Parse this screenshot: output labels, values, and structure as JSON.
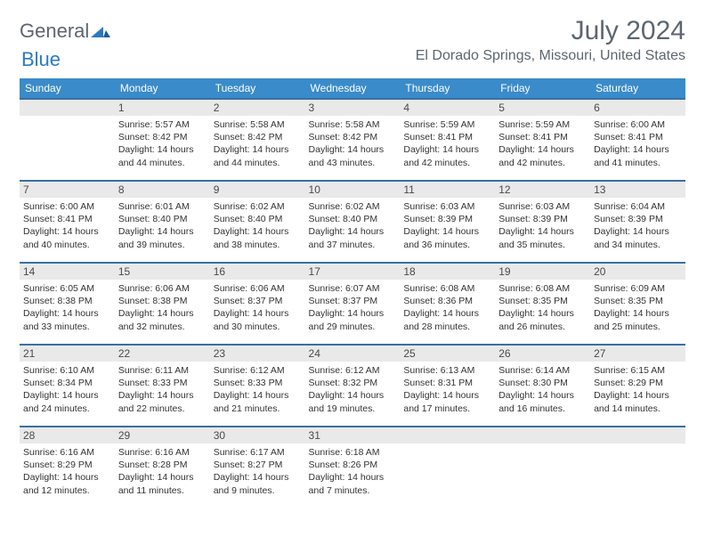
{
  "logo": {
    "text_general": "General",
    "text_blue": "Blue"
  },
  "title": "July 2024",
  "location": "El Dorado Springs, Missouri, United States",
  "colors": {
    "header_bg": "#3a8bc9",
    "row_border": "#3a6fa5",
    "daybar_bg": "#e9e9e9",
    "text_main": "#333333",
    "text_title": "#5c6670",
    "logo_blue": "#2b7bbf"
  },
  "day_headers": [
    "Sunday",
    "Monday",
    "Tuesday",
    "Wednesday",
    "Thursday",
    "Friday",
    "Saturday"
  ],
  "weeks": [
    [
      {
        "num": "",
        "sunrise": "",
        "sunset": "",
        "daylight": ""
      },
      {
        "num": "1",
        "sunrise": "Sunrise: 5:57 AM",
        "sunset": "Sunset: 8:42 PM",
        "daylight": "Daylight: 14 hours and 44 minutes."
      },
      {
        "num": "2",
        "sunrise": "Sunrise: 5:58 AM",
        "sunset": "Sunset: 8:42 PM",
        "daylight": "Daylight: 14 hours and 44 minutes."
      },
      {
        "num": "3",
        "sunrise": "Sunrise: 5:58 AM",
        "sunset": "Sunset: 8:42 PM",
        "daylight": "Daylight: 14 hours and 43 minutes."
      },
      {
        "num": "4",
        "sunrise": "Sunrise: 5:59 AM",
        "sunset": "Sunset: 8:41 PM",
        "daylight": "Daylight: 14 hours and 42 minutes."
      },
      {
        "num": "5",
        "sunrise": "Sunrise: 5:59 AM",
        "sunset": "Sunset: 8:41 PM",
        "daylight": "Daylight: 14 hours and 42 minutes."
      },
      {
        "num": "6",
        "sunrise": "Sunrise: 6:00 AM",
        "sunset": "Sunset: 8:41 PM",
        "daylight": "Daylight: 14 hours and 41 minutes."
      }
    ],
    [
      {
        "num": "7",
        "sunrise": "Sunrise: 6:00 AM",
        "sunset": "Sunset: 8:41 PM",
        "daylight": "Daylight: 14 hours and 40 minutes."
      },
      {
        "num": "8",
        "sunrise": "Sunrise: 6:01 AM",
        "sunset": "Sunset: 8:40 PM",
        "daylight": "Daylight: 14 hours and 39 minutes."
      },
      {
        "num": "9",
        "sunrise": "Sunrise: 6:02 AM",
        "sunset": "Sunset: 8:40 PM",
        "daylight": "Daylight: 14 hours and 38 minutes."
      },
      {
        "num": "10",
        "sunrise": "Sunrise: 6:02 AM",
        "sunset": "Sunset: 8:40 PM",
        "daylight": "Daylight: 14 hours and 37 minutes."
      },
      {
        "num": "11",
        "sunrise": "Sunrise: 6:03 AM",
        "sunset": "Sunset: 8:39 PM",
        "daylight": "Daylight: 14 hours and 36 minutes."
      },
      {
        "num": "12",
        "sunrise": "Sunrise: 6:03 AM",
        "sunset": "Sunset: 8:39 PM",
        "daylight": "Daylight: 14 hours and 35 minutes."
      },
      {
        "num": "13",
        "sunrise": "Sunrise: 6:04 AM",
        "sunset": "Sunset: 8:39 PM",
        "daylight": "Daylight: 14 hours and 34 minutes."
      }
    ],
    [
      {
        "num": "14",
        "sunrise": "Sunrise: 6:05 AM",
        "sunset": "Sunset: 8:38 PM",
        "daylight": "Daylight: 14 hours and 33 minutes."
      },
      {
        "num": "15",
        "sunrise": "Sunrise: 6:06 AM",
        "sunset": "Sunset: 8:38 PM",
        "daylight": "Daylight: 14 hours and 32 minutes."
      },
      {
        "num": "16",
        "sunrise": "Sunrise: 6:06 AM",
        "sunset": "Sunset: 8:37 PM",
        "daylight": "Daylight: 14 hours and 30 minutes."
      },
      {
        "num": "17",
        "sunrise": "Sunrise: 6:07 AM",
        "sunset": "Sunset: 8:37 PM",
        "daylight": "Daylight: 14 hours and 29 minutes."
      },
      {
        "num": "18",
        "sunrise": "Sunrise: 6:08 AM",
        "sunset": "Sunset: 8:36 PM",
        "daylight": "Daylight: 14 hours and 28 minutes."
      },
      {
        "num": "19",
        "sunrise": "Sunrise: 6:08 AM",
        "sunset": "Sunset: 8:35 PM",
        "daylight": "Daylight: 14 hours and 26 minutes."
      },
      {
        "num": "20",
        "sunrise": "Sunrise: 6:09 AM",
        "sunset": "Sunset: 8:35 PM",
        "daylight": "Daylight: 14 hours and 25 minutes."
      }
    ],
    [
      {
        "num": "21",
        "sunrise": "Sunrise: 6:10 AM",
        "sunset": "Sunset: 8:34 PM",
        "daylight": "Daylight: 14 hours and 24 minutes."
      },
      {
        "num": "22",
        "sunrise": "Sunrise: 6:11 AM",
        "sunset": "Sunset: 8:33 PM",
        "daylight": "Daylight: 14 hours and 22 minutes."
      },
      {
        "num": "23",
        "sunrise": "Sunrise: 6:12 AM",
        "sunset": "Sunset: 8:33 PM",
        "daylight": "Daylight: 14 hours and 21 minutes."
      },
      {
        "num": "24",
        "sunrise": "Sunrise: 6:12 AM",
        "sunset": "Sunset: 8:32 PM",
        "daylight": "Daylight: 14 hours and 19 minutes."
      },
      {
        "num": "25",
        "sunrise": "Sunrise: 6:13 AM",
        "sunset": "Sunset: 8:31 PM",
        "daylight": "Daylight: 14 hours and 17 minutes."
      },
      {
        "num": "26",
        "sunrise": "Sunrise: 6:14 AM",
        "sunset": "Sunset: 8:30 PM",
        "daylight": "Daylight: 14 hours and 16 minutes."
      },
      {
        "num": "27",
        "sunrise": "Sunrise: 6:15 AM",
        "sunset": "Sunset: 8:29 PM",
        "daylight": "Daylight: 14 hours and 14 minutes."
      }
    ],
    [
      {
        "num": "28",
        "sunrise": "Sunrise: 6:16 AM",
        "sunset": "Sunset: 8:29 PM",
        "daylight": "Daylight: 14 hours and 12 minutes."
      },
      {
        "num": "29",
        "sunrise": "Sunrise: 6:16 AM",
        "sunset": "Sunset: 8:28 PM",
        "daylight": "Daylight: 14 hours and 11 minutes."
      },
      {
        "num": "30",
        "sunrise": "Sunrise: 6:17 AM",
        "sunset": "Sunset: 8:27 PM",
        "daylight": "Daylight: 14 hours and 9 minutes."
      },
      {
        "num": "31",
        "sunrise": "Sunrise: 6:18 AM",
        "sunset": "Sunset: 8:26 PM",
        "daylight": "Daylight: 14 hours and 7 minutes."
      },
      {
        "num": "",
        "sunrise": "",
        "sunset": "",
        "daylight": ""
      },
      {
        "num": "",
        "sunrise": "",
        "sunset": "",
        "daylight": ""
      },
      {
        "num": "",
        "sunrise": "",
        "sunset": "",
        "daylight": ""
      }
    ]
  ]
}
